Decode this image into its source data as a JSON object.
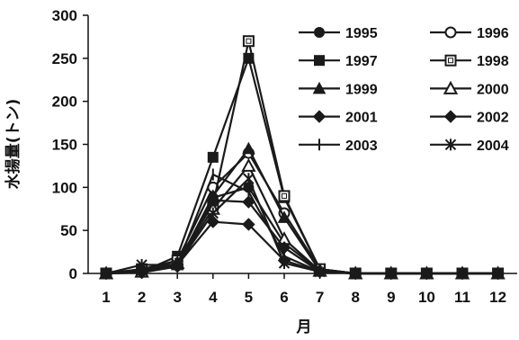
{
  "chart_data": {
    "type": "line",
    "title": "",
    "xlabel": "月",
    "ylabel": "水揚量(トン)",
    "x": [
      1,
      2,
      3,
      4,
      5,
      6,
      7,
      8,
      9,
      10,
      11,
      12
    ],
    "x_tick_labels": [
      "1",
      "2",
      "3",
      "4",
      "5",
      "6",
      "7",
      "8",
      "9",
      "10",
      "11",
      "12"
    ],
    "ylim": [
      0,
      300
    ],
    "y_ticks": [
      0,
      50,
      100,
      150,
      200,
      250,
      300
    ],
    "y_tick_labels": [
      "0",
      "50",
      "100",
      "150",
      "200",
      "250",
      "300"
    ],
    "grid": false,
    "legend_position": "top-right",
    "series": [
      {
        "name": "1995",
        "marker": "filled-circle",
        "values": [
          0,
          1,
          10,
          88,
          100,
          35,
          3,
          0,
          0,
          0,
          0,
          0
        ]
      },
      {
        "name": "1996",
        "marker": "open-circle",
        "values": [
          0,
          3,
          15,
          100,
          140,
          70,
          5,
          0,
          0,
          0,
          0,
          0
        ]
      },
      {
        "name": "1997",
        "marker": "filled-square",
        "values": [
          0,
          2,
          20,
          135,
          250,
          88,
          5,
          0,
          0,
          0,
          0,
          0
        ]
      },
      {
        "name": "1998",
        "marker": "open-square",
        "values": [
          0,
          5,
          15,
          80,
          270,
          90,
          5,
          0,
          0,
          0,
          0,
          0
        ]
      },
      {
        "name": "1999",
        "marker": "filled-triangle",
        "values": [
          0,
          3,
          10,
          90,
          145,
          65,
          3,
          0,
          0,
          0,
          0,
          0
        ]
      },
      {
        "name": "2000",
        "marker": "open-triangle",
        "values": [
          0,
          2,
          12,
          75,
          125,
          40,
          3,
          0,
          0,
          0,
          0,
          0
        ]
      },
      {
        "name": "2001",
        "marker": "filled-diamond",
        "values": [
          0,
          5,
          10,
          60,
          57,
          15,
          2,
          0,
          0,
          0,
          0,
          0
        ]
      },
      {
        "name": "2002",
        "marker": "filled-diamond",
        "values": [
          0,
          1,
          8,
          85,
          83,
          30,
          2,
          0,
          0,
          0,
          0,
          0
        ]
      },
      {
        "name": "2003",
        "marker": "plus",
        "values": [
          0,
          2,
          10,
          115,
          95,
          20,
          2,
          0,
          0,
          0,
          0,
          0
        ]
      },
      {
        "name": "2004",
        "marker": "asterisk",
        "values": [
          0,
          10,
          10,
          70,
          110,
          12,
          2,
          0,
          0,
          0,
          0,
          0
        ]
      }
    ]
  },
  "colors": {
    "line": "#1a1a1a",
    "marker_fill": "#1a1a1a",
    "open_fill": "#ffffff",
    "axis": "#111111",
    "background": "#ffffff"
  }
}
